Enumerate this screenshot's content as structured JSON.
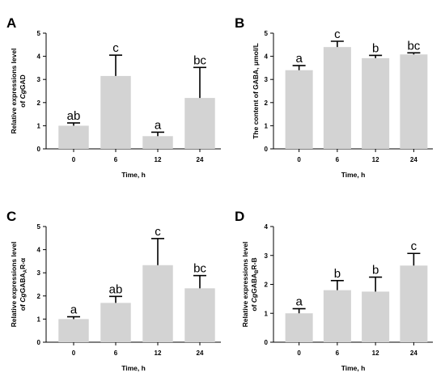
{
  "chart_data": [
    {
      "type": "bar",
      "panel": "A",
      "categories": [
        "0",
        "6",
        "12",
        "24"
      ],
      "values": [
        1.0,
        3.15,
        0.55,
        2.2
      ],
      "errors": [
        0.12,
        0.9,
        0.17,
        1.32
      ],
      "significance": [
        "ab",
        "c",
        "a",
        "bc"
      ],
      "xlabel": "Time, h",
      "ylabel": [
        "Relative expressions level",
        "of CgGAD"
      ],
      "ylim": [
        0,
        5
      ],
      "yticks": [
        0,
        1,
        2,
        3,
        4,
        5
      ],
      "grid": false
    },
    {
      "type": "bar",
      "panel": "B",
      "categories": [
        "0",
        "6",
        "12",
        "24"
      ],
      "values": [
        3.4,
        4.4,
        3.92,
        4.08
      ],
      "errors": [
        0.2,
        0.25,
        0.12,
        0.07
      ],
      "significance": [
        "a",
        "c",
        "b",
        "bc"
      ],
      "xlabel": "Time, h",
      "ylabel": [
        "The content of GABA, μmol/L"
      ],
      "ylim": [
        0,
        5
      ],
      "yticks": [
        0,
        1,
        2,
        3,
        4,
        5
      ],
      "grid": false
    },
    {
      "type": "bar",
      "panel": "C",
      "categories": [
        "0",
        "6",
        "12",
        "24"
      ],
      "values": [
        1.0,
        1.7,
        3.33,
        2.33
      ],
      "errors": [
        0.1,
        0.28,
        1.15,
        0.55
      ],
      "significance": [
        "a",
        "ab",
        "c",
        "bc"
      ],
      "xlabel": "Time, h",
      "ylabel": [
        "Relative expressions level",
        "of CgGABAAR-α"
      ],
      "ylim": [
        0,
        5
      ],
      "yticks": [
        0,
        1,
        2,
        3,
        4,
        5
      ],
      "grid": false
    },
    {
      "type": "bar",
      "panel": "D",
      "categories": [
        "0",
        "6",
        "12",
        "24"
      ],
      "values": [
        1.0,
        1.8,
        1.75,
        2.65
      ],
      "errors": [
        0.16,
        0.33,
        0.5,
        0.42
      ],
      "significance": [
        "a",
        "b",
        "b",
        "c"
      ],
      "xlabel": "Time, h",
      "ylabel": [
        "Relative expressions level",
        "of CgGABABR-B"
      ],
      "ylim": [
        0,
        4
      ],
      "yticks": [
        0,
        1,
        2,
        3,
        4
      ],
      "grid": false
    }
  ]
}
